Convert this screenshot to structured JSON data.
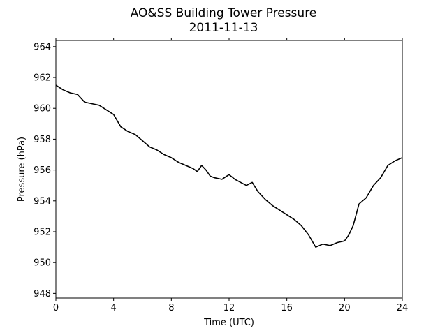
{
  "chart_data": {
    "type": "line",
    "title": "AO&SS Building Tower Pressure",
    "subtitle": "2011-11-13",
    "xlabel": "Time (UTC)",
    "ylabel": "Pressure (hPa)",
    "xlim": [
      0,
      24
    ],
    "ylim": [
      947.7,
      964.4
    ],
    "xticks": [
      0,
      4,
      8,
      12,
      16,
      20,
      24
    ],
    "yticks": [
      948,
      950,
      952,
      954,
      956,
      958,
      960,
      962,
      964
    ],
    "grid": false,
    "legend": "none",
    "line_color": "#000000",
    "series": [
      {
        "x": [
          0,
          0.5,
          1,
          1.5,
          2,
          2.5,
          3,
          3.5,
          4,
          4.5,
          5,
          5.5,
          6,
          6.5,
          7,
          7.5,
          8,
          8.5,
          9,
          9.5,
          9.8,
          10.1,
          10.4,
          10.7,
          11,
          11.5,
          12,
          12.4,
          12.8,
          13.2,
          13.6,
          14,
          14.5,
          15,
          15.5,
          16,
          16.5,
          17,
          17.5,
          18,
          18.5,
          19,
          19.5,
          20,
          20.3,
          20.6,
          21,
          21.5,
          22,
          22.5,
          23,
          23.5,
          24
        ],
        "y": [
          961.5,
          961.2,
          961.0,
          960.9,
          960.4,
          960.3,
          960.2,
          959.9,
          959.6,
          958.8,
          958.5,
          958.3,
          957.9,
          957.5,
          957.3,
          957.0,
          956.8,
          956.5,
          956.3,
          956.1,
          955.9,
          956.3,
          956.0,
          955.6,
          955.5,
          955.4,
          955.7,
          955.4,
          955.2,
          955.0,
          955.2,
          954.6,
          954.1,
          953.7,
          953.4,
          953.1,
          952.8,
          952.4,
          951.8,
          951.0,
          951.2,
          951.1,
          951.3,
          951.4,
          951.8,
          952.4,
          953.8,
          954.2,
          955.0,
          955.5,
          956.3,
          956.6,
          956.8
        ]
      }
    ]
  }
}
